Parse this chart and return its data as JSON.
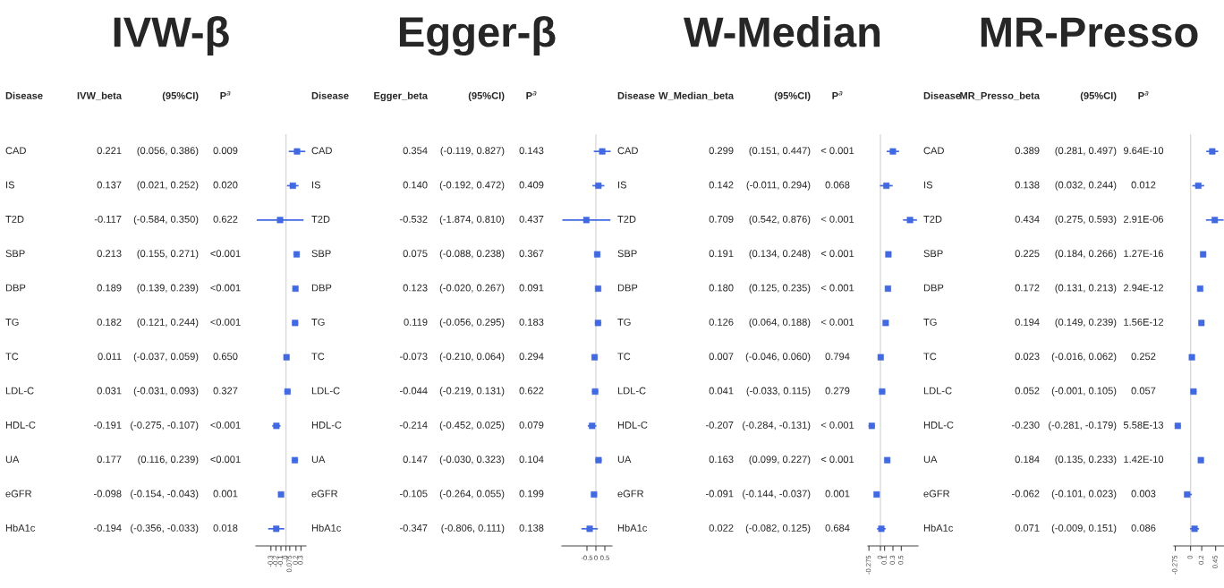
{
  "chart_data": [
    {
      "type": "scatter",
      "orientation": "horizontal",
      "title": "IVW-β",
      "ylabel": "Disease",
      "color": "#4169e1",
      "marker": "square",
      "tick_labels": "x",
      "categories": [
        "CAD",
        "IS",
        "T2D",
        "SBP",
        "DBP",
        "TG",
        "TC",
        "LDL-C",
        "HDL-C",
        "UA",
        "eGFR",
        "HbA1c"
      ],
      "values": [
        0.221,
        0.137,
        -0.117,
        0.213,
        0.189,
        0.182,
        0.011,
        0.031,
        -0.191,
        0.177,
        -0.098,
        -0.194
      ],
      "errors": [
        [
          0.056,
          0.386
        ],
        [
          0.021,
          0.252
        ],
        [
          -0.584,
          0.35
        ],
        [
          0.155,
          0.271
        ],
        [
          0.139,
          0.239
        ],
        [
          0.121,
          0.244
        ],
        [
          -0.037,
          0.059
        ],
        [
          -0.031,
          0.093
        ],
        [
          -0.275,
          -0.107
        ],
        [
          0.116,
          0.239
        ],
        [
          -0.154,
          -0.043
        ],
        [
          -0.356,
          -0.033
        ]
      ],
      "value_labels": [
        "0.221",
        "0.137",
        "-0.117",
        "0.213",
        "0.189",
        "0.182",
        "0.011",
        "0.031",
        "-0.191",
        "0.177",
        "-0.098",
        "-0.194"
      ],
      "xlim": [
        -0.6,
        0.4
      ],
      "xticks": [
        -0.3,
        -0.2,
        -0.1,
        0,
        0.075,
        0.2,
        0.3
      ],
      "ref_lines": [
        {
          "axis": "x",
          "value": 0,
          "color": "#d9d9d9"
        }
      ],
      "annotations": [
        "IVW_beta",
        "(95%CI)",
        "P$^{a}$",
        "(0.056, 0.386)",
        "(0.021, 0.252)",
        "(-0.584, 0.350)",
        "(0.155, 0.271)",
        "(0.139, 0.239)",
        "(0.121, 0.244)",
        "(-0.037, 0.059)",
        "(-0.031, 0.093)",
        "(-0.275, -0.107)",
        "(0.116, 0.239)",
        "(-0.154, -0.043)",
        "(-0.356, -0.033)",
        "0.009",
        "0.020",
        "0.622",
        "<0.001",
        "<0.001",
        "<0.001",
        "0.650",
        "0.327",
        "<0.001",
        "<0.001",
        "0.001",
        "0.018"
      ]
    },
    {
      "type": "scatter",
      "orientation": "horizontal",
      "title": "Egger-β",
      "ylabel": "Disease",
      "color": "#4169e1",
      "marker": "square",
      "tick_labels": "x",
      "categories": [
        "CAD",
        "IS",
        "T2D",
        "SBP",
        "DBP",
        "TG",
        "TC",
        "LDL-C",
        "HDL-C",
        "UA",
        "eGFR",
        "HbA1c"
      ],
      "values": [
        0.354,
        0.14,
        -0.532,
        0.075,
        0.123,
        0.119,
        -0.073,
        -0.044,
        -0.214,
        0.147,
        -0.105,
        -0.347
      ],
      "errors": [
        [
          -0.119,
          0.827
        ],
        [
          -0.192,
          0.472
        ],
        [
          -1.874,
          0.81
        ],
        [
          -0.088,
          0.238
        ],
        [
          -0.02,
          0.267
        ],
        [
          -0.056,
          0.295
        ],
        [
          -0.21,
          0.064
        ],
        [
          -0.219,
          0.131
        ],
        [
          -0.452,
          0.025
        ],
        [
          -0.03,
          0.323
        ],
        [
          -0.264,
          0.055
        ],
        [
          -0.806,
          0.111
        ]
      ],
      "value_labels": [
        "0.354",
        "0.140",
        "-0.532",
        "0.075",
        "0.123",
        "0.119",
        "-0.073",
        "-0.044",
        "-0.214",
        "0.147",
        "-0.105",
        "-0.347"
      ],
      "xlim": [
        -1.9,
        0.9
      ],
      "xticks": [
        -0.5,
        0,
        0.5
      ],
      "ref_lines": [
        {
          "axis": "x",
          "value": 0,
          "color": "#d9d9d9"
        }
      ],
      "annotations": [
        "Egger_beta",
        "(95%CI)",
        "P$^{a}$",
        "(-0.119, 0.827)",
        "(-0.192, 0.472)",
        "(-1.874, 0.810)",
        "(-0.088, 0.238)",
        "(-0.020, 0.267)",
        "(-0.056, 0.295)",
        "(-0.210, 0.064)",
        "(-0.219, 0.131)",
        "(-0.452, 0.025)",
        "(-0.030, 0.323)",
        "(-0.264, 0.055)",
        "(-0.806, 0.111)",
        "0.143",
        "0.409",
        "0.437",
        "0.367",
        "0.091",
        "0.183",
        "0.294",
        "0.622",
        "0.079",
        "0.104",
        "0.199",
        "0.138"
      ]
    },
    {
      "type": "scatter",
      "orientation": "horizontal",
      "title": "W-Median",
      "ylabel": "Disease",
      "color": "#4169e1",
      "marker": "square",
      "tick_labels": "x",
      "categories": [
        "CAD",
        "IS",
        "T2D",
        "SBP",
        "DBP",
        "TG",
        "TC",
        "LDL-C",
        "HDL-C",
        "UA",
        "eGFR",
        "HbA1c"
      ],
      "values": [
        0.299,
        0.142,
        0.709,
        0.191,
        0.18,
        0.126,
        0.007,
        0.041,
        -0.207,
        0.163,
        -0.091,
        0.022
      ],
      "errors": [
        [
          0.151,
          0.447
        ],
        [
          -0.011,
          0.294
        ],
        [
          0.542,
          0.876
        ],
        [
          0.134,
          0.248
        ],
        [
          0.125,
          0.235
        ],
        [
          0.064,
          0.188
        ],
        [
          -0.046,
          0.06
        ],
        [
          -0.033,
          0.115
        ],
        [
          -0.284,
          -0.131
        ],
        [
          0.099,
          0.227
        ],
        [
          -0.144,
          -0.037
        ],
        [
          -0.082,
          0.125
        ]
      ],
      "value_labels": [
        "0.299",
        "0.142",
        "0.709",
        "0.191",
        "0.180",
        "0.126",
        "0.007",
        "0.041",
        "-0.207",
        "0.163",
        "-0.091",
        "0.022"
      ],
      "xlim": [
        -0.3,
        0.9
      ],
      "xticks": [
        -0.275,
        0,
        0.1,
        0.3,
        0.5
      ],
      "ref_lines": [
        {
          "axis": "x",
          "value": 0,
          "color": "#d9d9d9"
        }
      ],
      "annotations": [
        "W_Median_beta",
        "(95%CI)",
        "P$^{a}$",
        "(0.151, 0.447)",
        "(-0.011, 0.294)",
        "(0.542, 0.876)",
        "(0.134, 0.248)",
        "(0.125, 0.235)",
        "(0.064, 0.188)",
        "(-0.046, 0.060)",
        "(-0.033, 0.115)",
        "(-0.284, -0.131)",
        "(0.099, 0.227)",
        "(-0.144, -0.037)",
        "(-0.082, 0.125)",
        "< 0.001",
        "0.068",
        "< 0.001",
        "< 0.001",
        "< 0.001",
        "< 0.001",
        "0.794",
        "0.279",
        "< 0.001",
        "< 0.001",
        "0.001",
        "0.684"
      ]
    },
    {
      "type": "scatter",
      "orientation": "horizontal",
      "title": "MR-Presso",
      "ylabel": "Disease",
      "color": "#4169e1",
      "marker": "square",
      "tick_labels": "x",
      "categories": [
        "CAD",
        "IS",
        "T2D",
        "SBP",
        "DBP",
        "TG",
        "TC",
        "LDL-C",
        "HDL-C",
        "UA",
        "eGFR",
        "HbA1c"
      ],
      "values": [
        0.389,
        0.138,
        0.434,
        0.225,
        0.172,
        0.194,
        0.023,
        0.052,
        -0.23,
        0.184,
        -0.062,
        0.071
      ],
      "errors": [
        [
          0.281,
          0.497
        ],
        [
          0.032,
          0.244
        ],
        [
          0.275,
          0.593
        ],
        [
          0.184,
          0.266
        ],
        [
          0.131,
          0.213
        ],
        [
          0.149,
          0.239
        ],
        [
          -0.016,
          0.062
        ],
        [
          -0.001,
          0.105
        ],
        [
          -0.281,
          -0.179
        ],
        [
          0.135,
          0.233
        ],
        [
          -0.101,
          0.023
        ],
        [
          -0.009,
          0.151
        ]
      ],
      "value_labels": [
        "0.389",
        "0.138",
        "0.434",
        "0.225",
        "0.172",
        "0.194",
        "0.023",
        "0.052",
        "-0.230",
        "0.184",
        "-0.062",
        "0.071"
      ],
      "xlim": [
        -0.3,
        0.6
      ],
      "xticks": [
        -0.275,
        0,
        0.2,
        0.45
      ],
      "ref_lines": [
        {
          "axis": "x",
          "value": 0,
          "color": "#d9d9d9"
        }
      ],
      "annotations": [
        "MR_Presso_beta",
        "(95%CI)",
        "P$^{a}$",
        "(0.281, 0.497)",
        "(0.032, 0.244)",
        "(0.275, 0.593)",
        "(0.184, 0.266)",
        "(0.131, 0.213)",
        "(0.149, 0.239)",
        "(-0.016, 0.062)",
        "(-0.001, 0.105)",
        "(-0.281, -0.179)",
        "(0.135, 0.233)",
        "(-0.101, 0.023)",
        "(-0.009, 0.151)",
        "9.64E-10",
        "0.012",
        "2.91E-06",
        "1.27E-16",
        "2.94E-12",
        "1.56E-12",
        "0.252",
        "0.057",
        "5.58E-13",
        "1.42E-10",
        "0.003",
        "0.086"
      ]
    }
  ]
}
